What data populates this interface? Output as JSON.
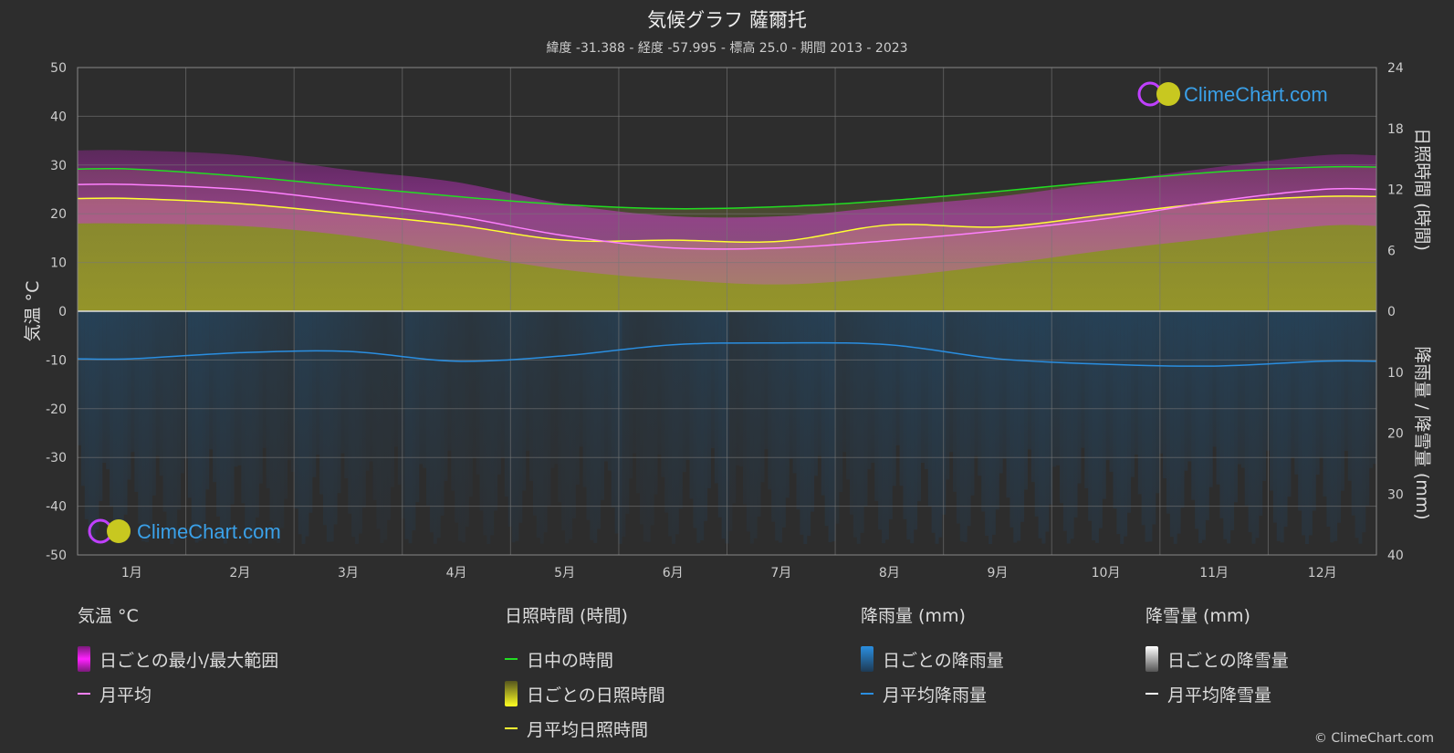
{
  "title": "気候グラフ 薩爾托",
  "subtitle": "緯度 -31.388 - 経度 -57.995 - 標高 25.0 - 期間 2013 - 2023",
  "brand": "ClimeChart.com",
  "copyright": "© ClimeChart.com",
  "colors": {
    "background": "#2d2d2d",
    "temp_range": "#d020d0",
    "temp_avg": "#ff80ff",
    "daylight": "#22dd22",
    "sunshine": "#c8c832",
    "sunshine_avg": "#ffff33",
    "rain": "#1e78c8",
    "rain_avg": "#2a8ee0",
    "snow_avg": "#ffffff"
  },
  "chart_data": {
    "type": "line",
    "categories": [
      "1月",
      "2月",
      "3月",
      "4月",
      "5月",
      "6月",
      "7月",
      "8月",
      "9月",
      "10月",
      "11月",
      "12月"
    ],
    "left_axis": {
      "label": "気温 °C",
      "ticks": [
        50,
        40,
        30,
        20,
        10,
        0,
        -10,
        -20,
        -30,
        -40,
        -50
      ],
      "range": [
        -50,
        50
      ]
    },
    "right_axis_top": {
      "label": "日照時間 (時間)",
      "ticks": [
        24,
        18,
        12,
        6,
        0
      ],
      "range": [
        0,
        24
      ]
    },
    "right_axis_bottom": {
      "label": "降雨量 / 降雪量 (mm)",
      "ticks": [
        0,
        10,
        20,
        30,
        40
      ],
      "range": [
        0,
        40
      ]
    },
    "series": [
      {
        "name": "日中の時間",
        "axis": "sunshine_hours",
        "values": [
          14.0,
          13.3,
          12.3,
          11.3,
          10.5,
          10.1,
          10.3,
          10.9,
          11.8,
          12.8,
          13.7,
          14.2
        ]
      },
      {
        "name": "月平均日照時間",
        "axis": "sunshine_hours",
        "values": [
          11.1,
          10.6,
          9.6,
          8.5,
          7.0,
          7.0,
          6.9,
          8.5,
          8.3,
          9.5,
          10.7,
          11.3
        ]
      },
      {
        "name": "月平均",
        "axis": "temperature_c",
        "values": [
          26.0,
          25.0,
          22.5,
          19.5,
          15.5,
          13.0,
          13.0,
          14.5,
          16.5,
          19.0,
          22.5,
          25.0
        ]
      },
      {
        "name": "月平均降雨量",
        "axis": "precip_mm",
        "values": [
          7.8,
          6.8,
          6.6,
          8.2,
          7.3,
          5.5,
          5.2,
          5.5,
          7.8,
          8.7,
          9.0,
          8.2
        ]
      },
      {
        "name": "月平均降雪量",
        "axis": "precip_mm",
        "values": [
          0,
          0,
          0,
          0,
          0,
          0,
          0,
          0,
          0,
          0,
          0,
          0
        ]
      }
    ],
    "temp_range": {
      "min": [
        18.0,
        17.5,
        15.5,
        12.0,
        8.5,
        6.5,
        5.5,
        7.0,
        9.5,
        12.5,
        15.0,
        17.5
      ],
      "max": [
        33.0,
        32.0,
        29.0,
        26.5,
        22.0,
        19.5,
        19.5,
        21.5,
        23.5,
        26.5,
        29.5,
        32.0
      ]
    },
    "grid": true
  },
  "legend": {
    "groups": [
      {
        "title": "気温 °C",
        "items": [
          {
            "label": "日ごとの最小/最大範囲",
            "swatch": "box",
            "color": "#d020d0"
          },
          {
            "label": "月平均",
            "swatch": "line",
            "color": "#ff80ff"
          }
        ]
      },
      {
        "title": "日照時間 (時間)",
        "items": [
          {
            "label": "日中の時間",
            "swatch": "line",
            "color": "#22dd22"
          },
          {
            "label": "日ごとの日照時間",
            "swatch": "box",
            "color": "#c8c832"
          },
          {
            "label": "月平均日照時間",
            "swatch": "line",
            "color": "#ffff33"
          }
        ]
      },
      {
        "title": "降雨量 (mm)",
        "items": [
          {
            "label": "日ごとの降雨量",
            "swatch": "box",
            "color": "#1e78c8"
          },
          {
            "label": "月平均降雨量",
            "swatch": "line",
            "color": "#2a8ee0"
          }
        ]
      },
      {
        "title": "降雪量 (mm)",
        "items": [
          {
            "label": "日ごとの降雪量",
            "swatch": "box",
            "color": "#dddddd"
          },
          {
            "label": "月平均降雪量",
            "swatch": "line",
            "color": "#ffffff"
          }
        ]
      }
    ]
  }
}
